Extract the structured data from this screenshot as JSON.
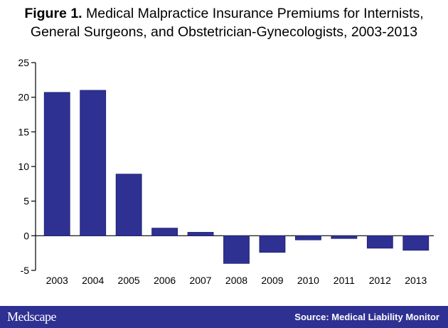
{
  "title": {
    "lead": "Figure 1.",
    "line1": "Medical Malpractice Insurance Premiums for Internists,",
    "line2": "General Surgeons, and Obstetrician-Gynecologists, 2003-2013"
  },
  "colors": {
    "bar": "#2e3192",
    "footer": "#2e3192"
  },
  "chart_data": {
    "type": "bar",
    "categories": [
      "2003",
      "2004",
      "2005",
      "2006",
      "2007",
      "2008",
      "2009",
      "2010",
      "2011",
      "2012",
      "2013"
    ],
    "values": [
      20.7,
      21.0,
      8.9,
      1.1,
      0.5,
      -4.0,
      -2.4,
      -0.6,
      -0.4,
      -1.8,
      -2.1
    ],
    "yticks": [
      25,
      20,
      15,
      10,
      5,
      0,
      -5
    ],
    "ylim": [
      -5,
      25
    ],
    "xlabel": "",
    "ylabel": "",
    "grid": false
  },
  "footer": {
    "brand": "Medscape",
    "source": "Source: Medical Liability Monitor"
  }
}
